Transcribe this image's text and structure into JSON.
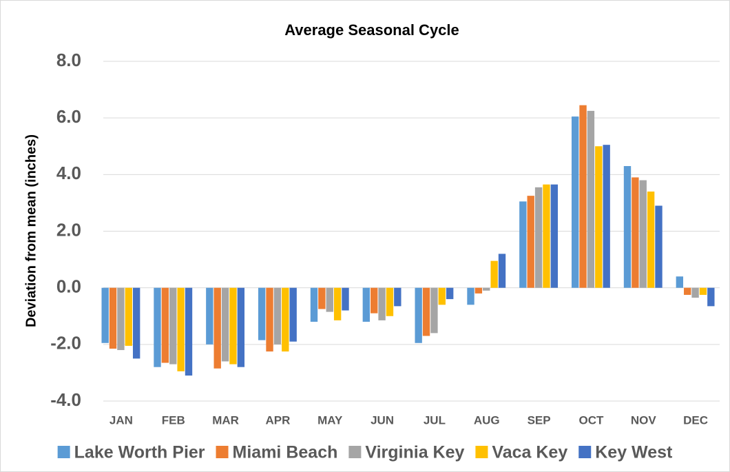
{
  "chart_data": {
    "type": "bar",
    "title": "Average Seasonal Cycle",
    "y_label": "Deviation from mean (inches)",
    "categories": [
      "JAN",
      "FEB",
      "MAR",
      "APR",
      "MAY",
      "JUN",
      "JUL",
      "AUG",
      "SEP",
      "OCT",
      "NOV",
      "DEC"
    ],
    "series": [
      {
        "name": "Lake Worth Pier",
        "color": "#5b9bd5",
        "values": [
          -1.95,
          -2.8,
          -2.0,
          -1.85,
          -1.2,
          -1.2,
          -1.95,
          -0.6,
          3.05,
          6.05,
          4.3,
          0.4
        ]
      },
      {
        "name": "Miami Beach",
        "color": "#ed7d31",
        "values": [
          -2.15,
          -2.65,
          -2.85,
          -2.25,
          -0.75,
          -0.9,
          -1.7,
          -0.2,
          3.25,
          6.45,
          3.9,
          -0.25
        ]
      },
      {
        "name": "Virginia Key",
        "color": "#a5a5a5",
        "values": [
          -2.2,
          -2.7,
          -2.6,
          -2.0,
          -0.85,
          -1.15,
          -1.6,
          -0.1,
          3.55,
          6.25,
          3.8,
          -0.35
        ]
      },
      {
        "name": "Vaca Key",
        "color": "#ffc000",
        "values": [
          -2.05,
          -2.95,
          -2.7,
          -2.25,
          -1.15,
          -1.0,
          -0.6,
          0.95,
          3.65,
          5.0,
          3.4,
          -0.25
        ]
      },
      {
        "name": "Key West",
        "color": "#4472c4",
        "values": [
          -2.5,
          -3.1,
          -2.8,
          -1.9,
          -0.8,
          -0.65,
          -0.4,
          1.2,
          3.65,
          5.05,
          2.9,
          -0.65
        ]
      }
    ],
    "ylim": [
      -4,
      8
    ],
    "yticks": [
      {
        "value": -4,
        "label": "-4.0"
      },
      {
        "value": -2,
        "label": "-2.0"
      },
      {
        "value": 0,
        "label": "0.0"
      },
      {
        "value": 2,
        "label": "2.0"
      },
      {
        "value": 4,
        "label": "4.0"
      },
      {
        "value": 6,
        "label": "6.0"
      },
      {
        "value": 8,
        "label": "8.0"
      }
    ],
    "grid": true,
    "legend": "bottom"
  }
}
